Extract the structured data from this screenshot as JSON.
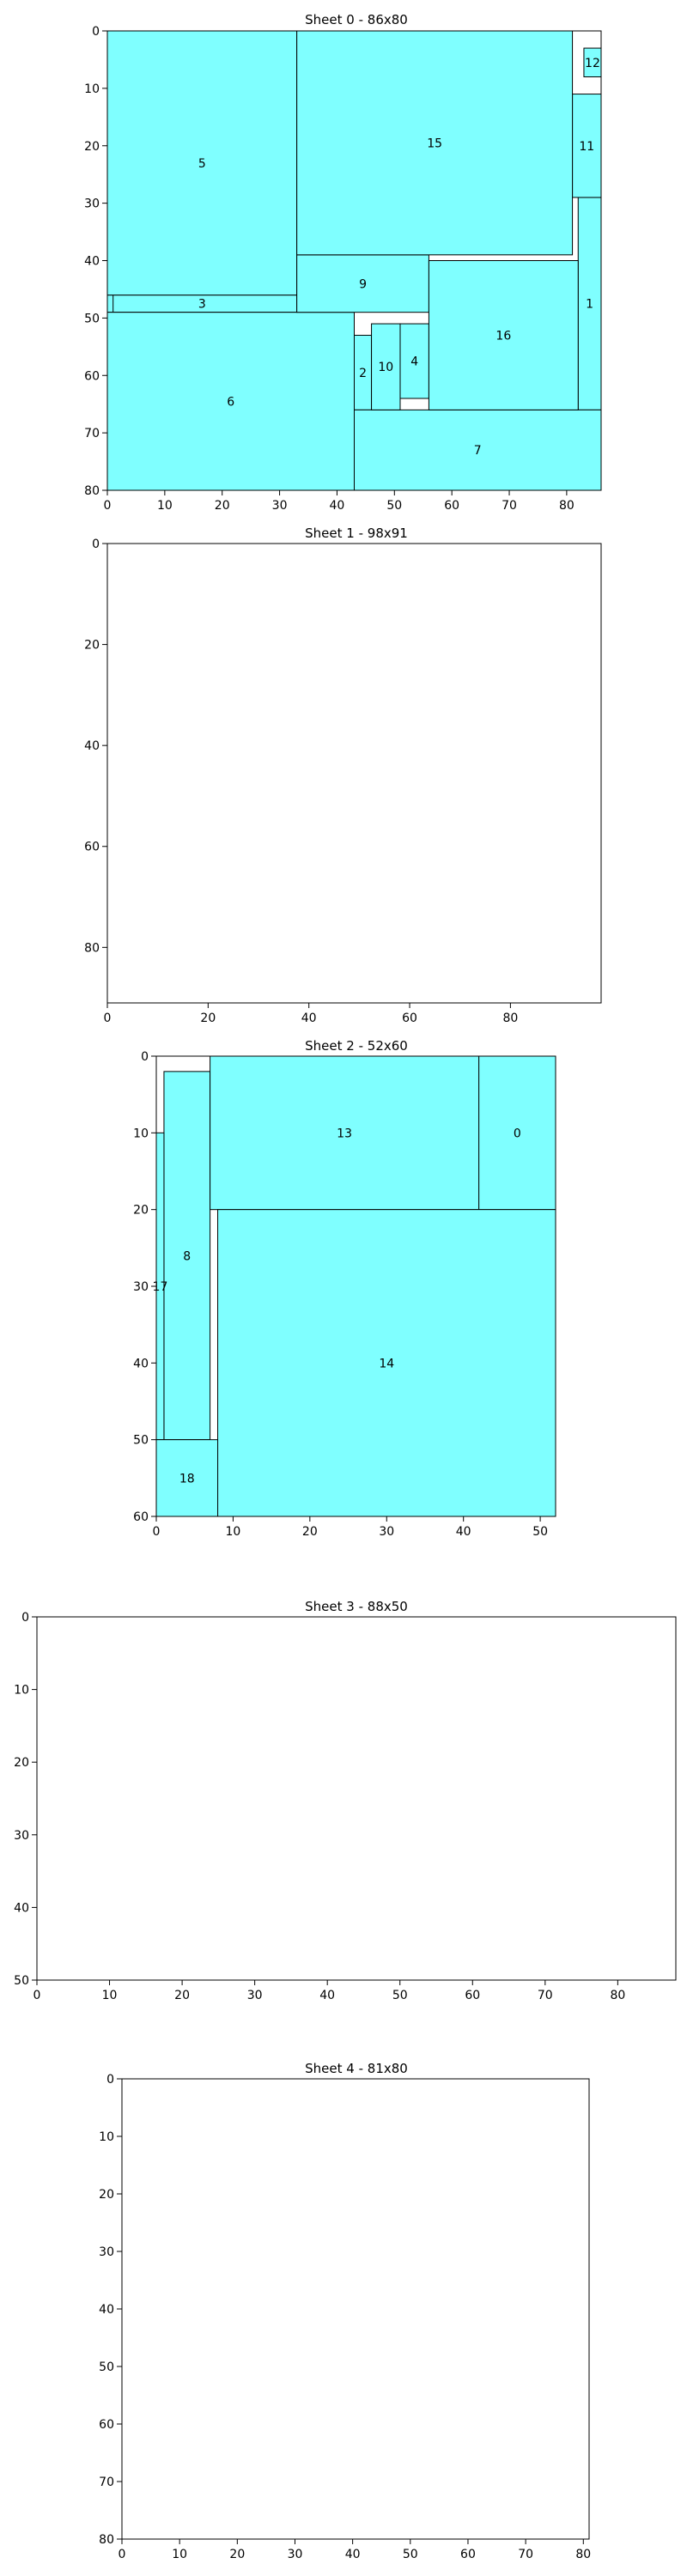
{
  "chart_data": [
    {
      "type": "rectangle-packing",
      "title": "Sheet 0 - 86x80",
      "xlim": [
        0,
        86
      ],
      "ylim": [
        80,
        0
      ],
      "xticks": [
        0,
        10,
        20,
        30,
        40,
        50,
        60,
        70,
        80
      ],
      "yticks": [
        0,
        10,
        20,
        30,
        40,
        50,
        60,
        70,
        80
      ],
      "fill_color": "#7fffff",
      "rects": [
        {
          "id": "1",
          "x0": 82,
          "y0": 29,
          "x1": 86,
          "y1": 66
        },
        {
          "id": "2",
          "x0": 43,
          "y0": 53,
          "x1": 46,
          "y1": 66
        },
        {
          "id": "3",
          "x0": 0,
          "y0": 46,
          "x1": 33,
          "y1": 49
        },
        {
          "id": "4",
          "x0": 51,
          "y0": 51,
          "x1": 56,
          "y1": 64
        },
        {
          "id": "5",
          "x0": 0,
          "y0": 0,
          "x1": 33,
          "y1": 46
        },
        {
          "id": "6",
          "x0": 0,
          "y0": 49,
          "x1": 43,
          "y1": 80
        },
        {
          "id": "7",
          "x0": 43,
          "y0": 66,
          "x1": 86,
          "y1": 80
        },
        {
          "id": "9",
          "x0": 33,
          "y0": 39,
          "x1": 56,
          "y1": 49
        },
        {
          "id": "10",
          "x0": 46,
          "y0": 51,
          "x1": 51,
          "y1": 66
        },
        {
          "id": "11",
          "x0": 81,
          "y0": 11,
          "x1": 86,
          "y1": 29
        },
        {
          "id": "12",
          "x0": 83,
          "y0": 3,
          "x1": 86,
          "y1": 8
        },
        {
          "id": "15",
          "x0": 33,
          "y0": 0,
          "x1": 81,
          "y1": 39
        },
        {
          "id": "16",
          "x0": 56,
          "y0": 40,
          "x1": 82,
          "y1": 66
        }
      ],
      "extra_lines": [
        {
          "x0": 1,
          "y0": 46,
          "x1": 1,
          "y1": 49
        }
      ]
    },
    {
      "type": "rectangle-packing",
      "title": "Sheet 1 - 98x91",
      "xlim": [
        0,
        98
      ],
      "ylim": [
        91,
        0
      ],
      "xticks": [
        0,
        20,
        40,
        60,
        80
      ],
      "yticks": [
        0,
        20,
        40,
        60,
        80
      ],
      "fill_color": "#7fffff",
      "rects": [],
      "extra_lines": []
    },
    {
      "type": "rectangle-packing",
      "title": "Sheet 2 - 52x60",
      "xlim": [
        0,
        52
      ],
      "ylim": [
        60,
        0
      ],
      "xticks": [
        0,
        10,
        20,
        30,
        40,
        50
      ],
      "yticks": [
        0,
        10,
        20,
        30,
        40,
        50,
        60
      ],
      "fill_color": "#7fffff",
      "rects": [
        {
          "id": "0",
          "x0": 42,
          "y0": 0,
          "x1": 52,
          "y1": 20
        },
        {
          "id": "8",
          "x0": 1,
          "y0": 2,
          "x1": 7,
          "y1": 50
        },
        {
          "id": "13",
          "x0": 7,
          "y0": 0,
          "x1": 42,
          "y1": 20
        },
        {
          "id": "14",
          "x0": 8,
          "y0": 20,
          "x1": 52,
          "y1": 60
        },
        {
          "id": "17",
          "x0": 0,
          "y0": 10,
          "x1": 1,
          "y1": 50
        },
        {
          "id": "18",
          "x0": 0,
          "y0": 50,
          "x1": 8,
          "y1": 60
        }
      ],
      "extra_lines": []
    },
    {
      "type": "rectangle-packing",
      "title": "Sheet 3 - 88x50",
      "xlim": [
        0,
        88
      ],
      "ylim": [
        50,
        0
      ],
      "xticks": [
        0,
        10,
        20,
        30,
        40,
        50,
        60,
        70,
        80
      ],
      "yticks": [
        0,
        10,
        20,
        30,
        40,
        50
      ],
      "fill_color": "#7fffff",
      "rects": [],
      "extra_lines": []
    },
    {
      "type": "rectangle-packing",
      "title": "Sheet 4 - 81x80",
      "xlim": [
        0,
        81
      ],
      "ylim": [
        80,
        0
      ],
      "xticks": [
        0,
        10,
        20,
        30,
        40,
        50,
        60,
        70,
        80
      ],
      "yticks": [
        0,
        10,
        20,
        30,
        40,
        50,
        60,
        70,
        80
      ],
      "fill_color": "#7fffff",
      "rects": [],
      "extra_lines": []
    }
  ]
}
